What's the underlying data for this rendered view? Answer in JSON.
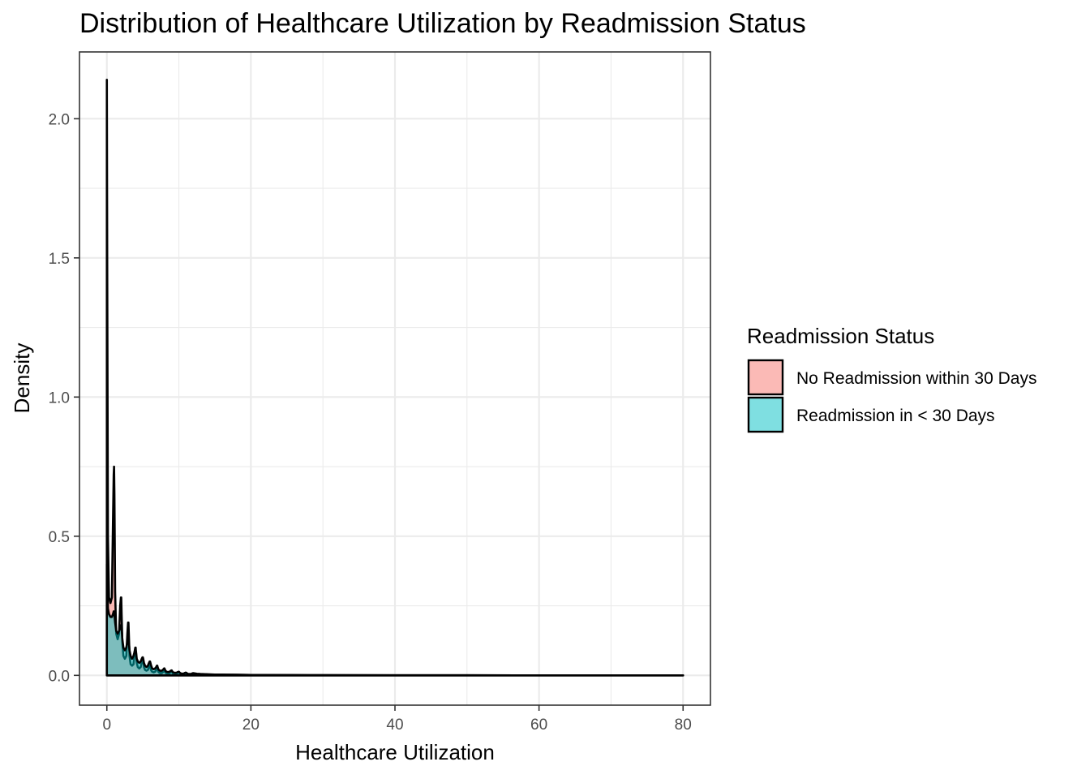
{
  "chart_data": {
    "type": "area",
    "title": "Distribution of Healthcare Utilization by Readmission Status",
    "xlabel": "Healthcare Utilization",
    "ylabel": "Density",
    "xlim": [
      -3.8,
      83.8
    ],
    "ylim": [
      -0.107,
      2.24
    ],
    "xticks": [
      0,
      20,
      40,
      60,
      80
    ],
    "xtick_labels": [
      "0",
      "20",
      "40",
      "60",
      "80"
    ],
    "yticks": [
      0.0,
      0.5,
      1.0,
      1.5,
      2.0
    ],
    "ytick_labels": [
      "0.0",
      "0.5",
      "1.0",
      "1.5",
      "2.0"
    ],
    "grid": true,
    "legend": {
      "title": "Readmission Status",
      "position": "right",
      "entries": [
        "No Readmission within 30 Days",
        "Readmission in < 30 Days"
      ]
    },
    "series": [
      {
        "name": "No Readmission within 30 Days",
        "color": "#F8766D",
        "x": [
          0,
          0.05,
          0.15,
          0.3,
          0.5,
          0.7,
          0.85,
          0.95,
          1,
          1.05,
          1.15,
          1.3,
          1.5,
          1.7,
          1.85,
          1.95,
          2,
          2.05,
          2.15,
          2.3,
          2.5,
          2.7,
          2.85,
          2.95,
          3,
          3.05,
          3.15,
          3.3,
          3.5,
          3.7,
          3.85,
          3.95,
          4,
          4.05,
          4.15,
          4.3,
          4.5,
          4.7,
          4.85,
          4.95,
          5,
          5.05,
          5.15,
          5.3,
          5.5,
          5.7,
          5.85,
          5.95,
          6,
          6.05,
          6.15,
          6.3,
          6.5,
          6.7,
          6.85,
          6.95,
          7,
          7.05,
          7.15,
          7.3,
          7.5,
          7.7,
          7.85,
          7.95,
          8,
          8.05,
          8.15,
          8.3,
          8.5,
          8.7,
          8.85,
          8.95,
          9,
          9.05,
          9.15,
          9.3,
          9.5,
          9.7,
          9.85,
          9.95,
          10,
          10.05,
          10.15,
          10.3,
          10.5,
          10.7,
          10.85,
          10.95,
          11,
          11.05,
          11.15,
          11.3,
          11.5,
          11.7,
          11.85,
          11.95,
          12,
          12.5,
          13,
          14,
          15,
          16,
          18,
          20,
          25,
          30,
          40,
          50,
          60,
          70,
          80
        ],
        "y": [
          2.14,
          1.5,
          0.5,
          0.28,
          0.26,
          0.28,
          0.55,
          0.72,
          0.75,
          0.65,
          0.3,
          0.15,
          0.13,
          0.15,
          0.25,
          0.28,
          0.28,
          0.22,
          0.12,
          0.07,
          0.06,
          0.07,
          0.15,
          0.19,
          0.19,
          0.15,
          0.07,
          0.04,
          0.035,
          0.04,
          0.085,
          0.1,
          0.1,
          0.08,
          0.045,
          0.03,
          0.025,
          0.03,
          0.05,
          0.06,
          0.06,
          0.05,
          0.03,
          0.02,
          0.017,
          0.02,
          0.03,
          0.035,
          0.035,
          0.03,
          0.018,
          0.013,
          0.011,
          0.013,
          0.02,
          0.025,
          0.025,
          0.02,
          0.013,
          0.009,
          0.008,
          0.009,
          0.014,
          0.017,
          0.017,
          0.014,
          0.009,
          0.007,
          0.006,
          0.007,
          0.011,
          0.013,
          0.013,
          0.011,
          0.007,
          0.005,
          0.005,
          0.005,
          0.009,
          0.01,
          0.01,
          0.009,
          0.006,
          0.004,
          0.004,
          0.004,
          0.007,
          0.008,
          0.008,
          0.007,
          0.005,
          0.003,
          0.003,
          0.003,
          0.005,
          0.006,
          0.006,
          0.004,
          0.004,
          0.003,
          0.003,
          0.002,
          0.002,
          0.0015,
          0.001,
          0.0007,
          0.0004,
          0.0002,
          0.0001,
          5e-05,
          2e-05
        ]
      },
      {
        "name": "Readmission in < 30 Days",
        "color": "#00BFC4",
        "x": [
          0,
          0.05,
          0.15,
          0.3,
          0.5,
          0.7,
          0.85,
          0.95,
          1,
          1.05,
          1.15,
          1.3,
          1.5,
          1.7,
          1.85,
          1.95,
          2,
          2.05,
          2.15,
          2.3,
          2.5,
          2.7,
          2.85,
          2.95,
          3,
          3.05,
          3.15,
          3.3,
          3.5,
          3.7,
          3.85,
          3.95,
          4,
          4.05,
          4.15,
          4.3,
          4.5,
          4.7,
          4.85,
          4.95,
          5,
          5.05,
          5.15,
          5.3,
          5.5,
          5.7,
          5.85,
          5.95,
          6,
          6.05,
          6.15,
          6.3,
          6.5,
          6.7,
          6.85,
          6.95,
          7,
          7.05,
          7.15,
          7.3,
          7.5,
          7.7,
          7.85,
          7.95,
          8,
          8.05,
          8.15,
          8.3,
          8.5,
          8.7,
          8.85,
          8.95,
          9,
          9.05,
          9.15,
          9.3,
          9.5,
          9.7,
          9.85,
          9.95,
          10,
          10.05,
          10.15,
          10.3,
          10.5,
          10.7,
          10.85,
          10.95,
          11,
          11.05,
          11.15,
          11.3,
          11.5,
          11.7,
          11.85,
          11.95,
          12,
          12.5,
          13,
          14,
          15,
          16,
          18,
          20,
          25,
          30,
          40,
          50,
          60,
          70,
          80
        ],
        "y": [
          0.4,
          0.35,
          0.24,
          0.22,
          0.21,
          0.21,
          0.22,
          0.23,
          0.23,
          0.22,
          0.19,
          0.16,
          0.15,
          0.16,
          0.17,
          0.18,
          0.18,
          0.17,
          0.13,
          0.1,
          0.09,
          0.1,
          0.12,
          0.13,
          0.13,
          0.12,
          0.09,
          0.07,
          0.06,
          0.07,
          0.085,
          0.09,
          0.09,
          0.085,
          0.06,
          0.05,
          0.045,
          0.05,
          0.06,
          0.065,
          0.065,
          0.06,
          0.045,
          0.035,
          0.03,
          0.035,
          0.045,
          0.05,
          0.05,
          0.045,
          0.035,
          0.025,
          0.022,
          0.025,
          0.03,
          0.035,
          0.035,
          0.03,
          0.022,
          0.018,
          0.016,
          0.018,
          0.022,
          0.025,
          0.025,
          0.022,
          0.016,
          0.013,
          0.012,
          0.013,
          0.016,
          0.018,
          0.018,
          0.016,
          0.012,
          0.01,
          0.009,
          0.01,
          0.012,
          0.013,
          0.013,
          0.012,
          0.009,
          0.007,
          0.006,
          0.007,
          0.009,
          0.01,
          0.01,
          0.009,
          0.007,
          0.005,
          0.005,
          0.005,
          0.007,
          0.008,
          0.008,
          0.006,
          0.005,
          0.004,
          0.003,
          0.003,
          0.002,
          0.0015,
          0.001,
          0.0007,
          0.0004,
          0.0002,
          0.0001,
          5e-05,
          2e-05
        ]
      }
    ]
  }
}
